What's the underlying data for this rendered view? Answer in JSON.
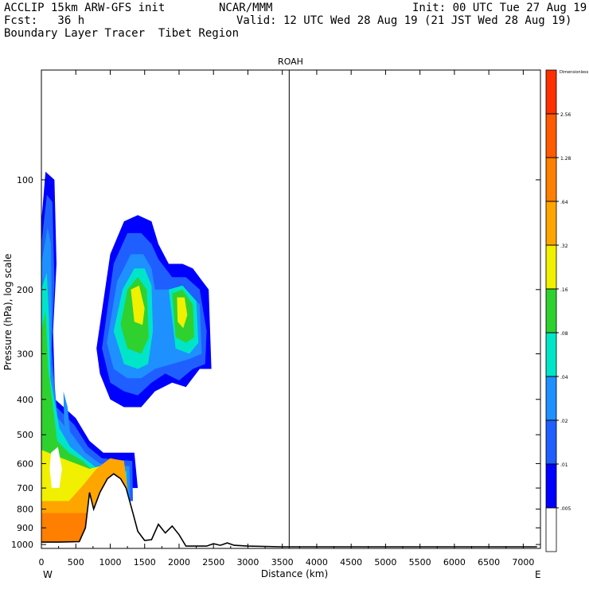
{
  "header": {
    "model": "ACCLIP 15km ARW-GFS init",
    "org": "NCAR/MMM",
    "init": "Init: 00 UTC Tue 27 Aug 19",
    "fcst": "Fcst:   36 h",
    "valid": "Valid: 12 UTC Wed 28 Aug 19 (21 JST Wed 28 Aug 19)",
    "field": "Boundary Layer Tracer  Tibet Region"
  },
  "chart_data": {
    "type": "cross-section contour (filled)",
    "title": "ROAH",
    "xlabel": "Distance (km)",
    "ylabel": "Pressure (hPa), log scale",
    "x_ticks": [
      "0",
      "500",
      "1000",
      "1500",
      "2000",
      "2500",
      "3000",
      "3500",
      "4000",
      "4500",
      "5000",
      "5500",
      "6000",
      "6500",
      "7000"
    ],
    "xlim": [
      0,
      7250
    ],
    "y_ticks": [
      "100",
      "200",
      "300",
      "400",
      "500",
      "600",
      "700",
      "800",
      "900",
      "1000"
    ],
    "ylim": [
      1025,
      50
    ],
    "y_scale": "log",
    "x_end_labels": {
      "left": "W",
      "right": "E"
    },
    "marker_line_x": 3600,
    "colorbar": {
      "title": "Dimensionless",
      "levels": [
        ".005",
        ".01",
        ".02",
        ".04",
        ".08",
        ".16",
        ".32",
        ".64",
        "1.28",
        "2.56"
      ],
      "colors": [
        "#ffffff",
        "#0000ff",
        "#1f5fff",
        "#1e90ff",
        "#00e5c8",
        "#2fd12f",
        "#f0f000",
        "#ffa500",
        "#ff7f00",
        "#ff5a00",
        "#ff3000"
      ]
    },
    "terrain": [
      [
        0,
        985
      ],
      [
        250,
        985
      ],
      [
        550,
        982
      ],
      [
        640,
        900
      ],
      [
        700,
        720
      ],
      [
        760,
        800
      ],
      [
        850,
        720
      ],
      [
        960,
        660
      ],
      [
        1050,
        640
      ],
      [
        1150,
        660
      ],
      [
        1230,
        700
      ],
      [
        1330,
        820
      ],
      [
        1400,
        920
      ],
      [
        1500,
        975
      ],
      [
        1600,
        970
      ],
      [
        1700,
        880
      ],
      [
        1800,
        930
      ],
      [
        1900,
        890
      ],
      [
        2000,
        940
      ],
      [
        2100,
        1010
      ],
      [
        2400,
        1010
      ],
      [
        2500,
        995
      ],
      [
        2600,
        1005
      ],
      [
        2700,
        990
      ],
      [
        2800,
        1005
      ],
      [
        3000,
        1010
      ],
      [
        3500,
        1015
      ],
      [
        7200,
        1015
      ]
    ],
    "tracer_features": [
      {
        "name": "near-surface layer",
        "x_range": [
          0,
          1400
        ],
        "p_range": [
          1000,
          550
        ],
        "max_level": "1.28"
      },
      {
        "name": "western plume",
        "x_range": [
          0,
          750
        ],
        "p_range": [
          600,
          95
        ],
        "max_level": ".32"
      },
      {
        "name": "upper-level plume",
        "x_range": [
          800,
          2450
        ],
        "p_range": [
          420,
          140
        ],
        "max_level": ".64"
      }
    ]
  }
}
